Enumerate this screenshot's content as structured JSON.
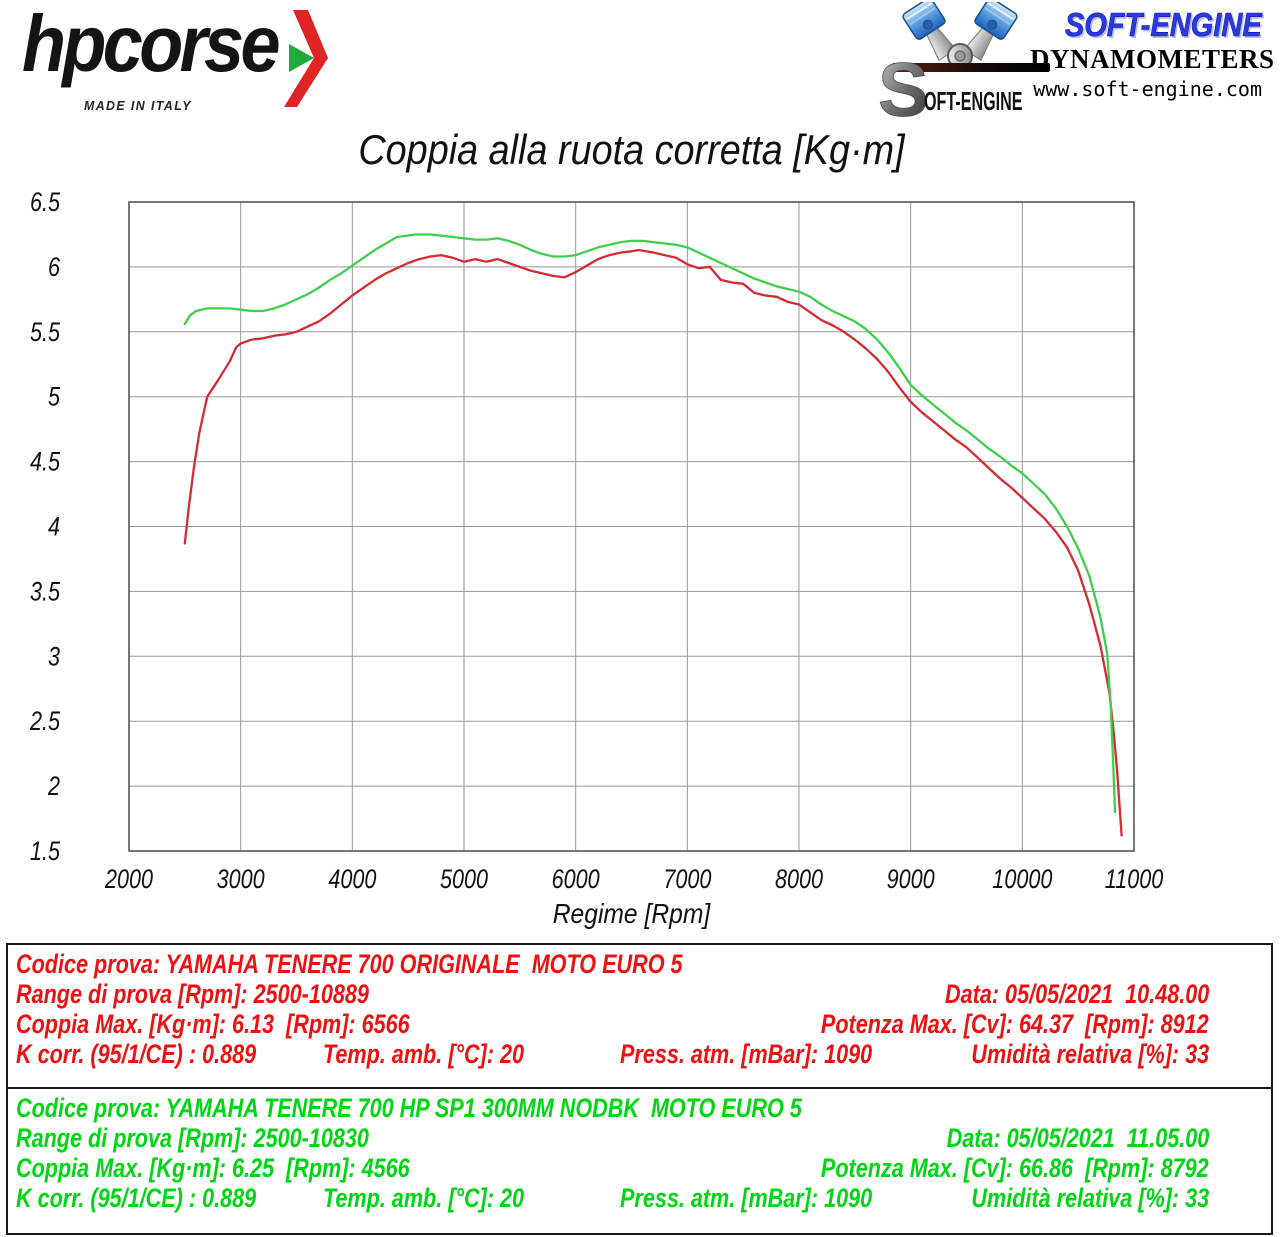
{
  "header": {
    "hpcorse": {
      "brand": "hpcorse",
      "tagline": "MADE IN ITALY"
    },
    "softengine": {
      "s_initial": "S",
      "s_text": "OFT-ENGINE",
      "brand": "SOFT-ENGINE",
      "subtitle": "DYNAMOMETERS",
      "url": "www.soft-engine.com",
      "brand_color": "#2b3bdd"
    }
  },
  "chart_data": {
    "type": "line",
    "title": "Coppia alla ruota corretta [Kg·m]",
    "xlabel": "Regime [Rpm]",
    "ylabel": "",
    "xlim": [
      2000,
      11000
    ],
    "ylim": [
      1.5,
      6.5
    ],
    "x_ticks": [
      "2000",
      "3000",
      "4000",
      "5000",
      "6000",
      "7000",
      "8000",
      "9000",
      "10000",
      "11000"
    ],
    "y_ticks": [
      "6.5",
      "6",
      "5.5",
      "5",
      "4.5",
      "4",
      "3.5",
      "3",
      "2.5",
      "2",
      "1.5"
    ],
    "grid": true,
    "legend_position": "none",
    "series": [
      {
        "name": "YAMAHA TENERE 700 ORIGINALE MOTO EURO 5",
        "color": "#d52b32",
        "max_torque_kgm": 6.13,
        "max_torque_rpm": 6566,
        "points": [
          [
            2500,
            3.87
          ],
          [
            2540,
            4.18
          ],
          [
            2580,
            4.45
          ],
          [
            2630,
            4.72
          ],
          [
            2700,
            5.0
          ],
          [
            2800,
            5.13
          ],
          [
            2900,
            5.27
          ],
          [
            2960,
            5.38
          ],
          [
            3000,
            5.41
          ],
          [
            3100,
            5.44
          ],
          [
            3200,
            5.45
          ],
          [
            3300,
            5.47
          ],
          [
            3400,
            5.48
          ],
          [
            3500,
            5.5
          ],
          [
            3600,
            5.54
          ],
          [
            3700,
            5.58
          ],
          [
            3800,
            5.64
          ],
          [
            3900,
            5.71
          ],
          [
            4000,
            5.78
          ],
          [
            4100,
            5.84
          ],
          [
            4200,
            5.9
          ],
          [
            4300,
            5.95
          ],
          [
            4400,
            5.99
          ],
          [
            4500,
            6.03
          ],
          [
            4600,
            6.06
          ],
          [
            4700,
            6.08
          ],
          [
            4800,
            6.09
          ],
          [
            4900,
            6.07
          ],
          [
            5000,
            6.04
          ],
          [
            5100,
            6.06
          ],
          [
            5200,
            6.04
          ],
          [
            5300,
            6.06
          ],
          [
            5400,
            6.03
          ],
          [
            5500,
            6.0
          ],
          [
            5600,
            5.97
          ],
          [
            5700,
            5.95
          ],
          [
            5800,
            5.93
          ],
          [
            5900,
            5.92
          ],
          [
            6000,
            5.96
          ],
          [
            6100,
            6.01
          ],
          [
            6200,
            6.06
          ],
          [
            6300,
            6.09
          ],
          [
            6400,
            6.11
          ],
          [
            6500,
            6.12
          ],
          [
            6566,
            6.13
          ],
          [
            6700,
            6.11
          ],
          [
            6800,
            6.09
          ],
          [
            6900,
            6.07
          ],
          [
            7000,
            6.02
          ],
          [
            7100,
            5.99
          ],
          [
            7200,
            6.0
          ],
          [
            7300,
            5.9
          ],
          [
            7400,
            5.88
          ],
          [
            7500,
            5.87
          ],
          [
            7600,
            5.8
          ],
          [
            7700,
            5.78
          ],
          [
            7800,
            5.77
          ],
          [
            7900,
            5.73
          ],
          [
            8000,
            5.71
          ],
          [
            8100,
            5.65
          ],
          [
            8200,
            5.59
          ],
          [
            8300,
            5.55
          ],
          [
            8400,
            5.5
          ],
          [
            8500,
            5.44
          ],
          [
            8600,
            5.37
          ],
          [
            8700,
            5.29
          ],
          [
            8800,
            5.19
          ],
          [
            8900,
            5.07
          ],
          [
            9000,
            4.96
          ],
          [
            9100,
            4.88
          ],
          [
            9200,
            4.81
          ],
          [
            9300,
            4.74
          ],
          [
            9400,
            4.67
          ],
          [
            9500,
            4.61
          ],
          [
            9600,
            4.53
          ],
          [
            9700,
            4.45
          ],
          [
            9800,
            4.37
          ],
          [
            9900,
            4.3
          ],
          [
            10000,
            4.22
          ],
          [
            10100,
            4.14
          ],
          [
            10200,
            4.06
          ],
          [
            10300,
            3.96
          ],
          [
            10400,
            3.84
          ],
          [
            10500,
            3.66
          ],
          [
            10600,
            3.4
          ],
          [
            10700,
            3.08
          ],
          [
            10780,
            2.72
          ],
          [
            10820,
            2.4
          ],
          [
            10850,
            2.1
          ],
          [
            10889,
            1.62
          ]
        ]
      },
      {
        "name": "YAMAHA TENERE 700 HP SP1 300MM NODBK MOTO EURO 5",
        "color": "#3fcf4c",
        "max_torque_kgm": 6.25,
        "max_torque_rpm": 4566,
        "points": [
          [
            2500,
            5.56
          ],
          [
            2550,
            5.63
          ],
          [
            2600,
            5.66
          ],
          [
            2700,
            5.68
          ],
          [
            2800,
            5.68
          ],
          [
            2900,
            5.68
          ],
          [
            3000,
            5.67
          ],
          [
            3100,
            5.66
          ],
          [
            3200,
            5.66
          ],
          [
            3300,
            5.68
          ],
          [
            3400,
            5.71
          ],
          [
            3500,
            5.75
          ],
          [
            3600,
            5.79
          ],
          [
            3700,
            5.84
          ],
          [
            3800,
            5.9
          ],
          [
            3900,
            5.95
          ],
          [
            4000,
            6.01
          ],
          [
            4100,
            6.07
          ],
          [
            4200,
            6.13
          ],
          [
            4300,
            6.18
          ],
          [
            4400,
            6.23
          ],
          [
            4566,
            6.25
          ],
          [
            4700,
            6.25
          ],
          [
            4800,
            6.24
          ],
          [
            4900,
            6.23
          ],
          [
            5000,
            6.22
          ],
          [
            5100,
            6.21
          ],
          [
            5200,
            6.21
          ],
          [
            5300,
            6.22
          ],
          [
            5400,
            6.2
          ],
          [
            5500,
            6.17
          ],
          [
            5600,
            6.13
          ],
          [
            5700,
            6.1
          ],
          [
            5800,
            6.08
          ],
          [
            5900,
            6.08
          ],
          [
            6000,
            6.09
          ],
          [
            6100,
            6.12
          ],
          [
            6200,
            6.15
          ],
          [
            6300,
            6.17
          ],
          [
            6400,
            6.19
          ],
          [
            6500,
            6.2
          ],
          [
            6600,
            6.2
          ],
          [
            6700,
            6.19
          ],
          [
            6800,
            6.18
          ],
          [
            6900,
            6.17
          ],
          [
            7000,
            6.15
          ],
          [
            7100,
            6.11
          ],
          [
            7200,
            6.07
          ],
          [
            7300,
            6.03
          ],
          [
            7400,
            5.99
          ],
          [
            7500,
            5.95
          ],
          [
            7600,
            5.91
          ],
          [
            7700,
            5.88
          ],
          [
            7800,
            5.85
          ],
          [
            7900,
            5.83
          ],
          [
            8000,
            5.81
          ],
          [
            8100,
            5.77
          ],
          [
            8200,
            5.71
          ],
          [
            8300,
            5.66
          ],
          [
            8400,
            5.62
          ],
          [
            8500,
            5.58
          ],
          [
            8600,
            5.52
          ],
          [
            8700,
            5.44
          ],
          [
            8800,
            5.34
          ],
          [
            8900,
            5.22
          ],
          [
            9000,
            5.09
          ],
          [
            9100,
            5.01
          ],
          [
            9200,
            4.94
          ],
          [
            9300,
            4.87
          ],
          [
            9400,
            4.8
          ],
          [
            9500,
            4.74
          ],
          [
            9600,
            4.67
          ],
          [
            9700,
            4.6
          ],
          [
            9800,
            4.54
          ],
          [
            9900,
            4.47
          ],
          [
            10000,
            4.41
          ],
          [
            10100,
            4.33
          ],
          [
            10200,
            4.25
          ],
          [
            10300,
            4.14
          ],
          [
            10400,
            4.0
          ],
          [
            10500,
            3.83
          ],
          [
            10600,
            3.62
          ],
          [
            10700,
            3.3
          ],
          [
            10760,
            3.02
          ],
          [
            10790,
            2.65
          ],
          [
            10810,
            2.25
          ],
          [
            10830,
            1.8
          ]
        ]
      }
    ]
  },
  "results": [
    {
      "color": "#ee1111",
      "codice": "Codice prova: YAMAHA TENERE 700 ORIGINALE  MOTO EURO 5",
      "range": "Range di prova [Rpm]: 2500-10889",
      "data": "Data: 05/05/2021  10.48.00",
      "coppia": "Coppia Max. [Kg·m]: 6.13  [Rpm]: 6566",
      "potenza": "Potenza Max. [Cv]: 64.37  [Rpm]: 8912",
      "kcorr": "K corr. (95/1/CE) : 0.889",
      "temp": "Temp. amb. [°C]: 20",
      "press": "Press. atm. [mBar]: 1090",
      "umidita": "Umidità relativa [%]: 33"
    },
    {
      "color": "#00d614",
      "codice": "Codice prova: YAMAHA TENERE 700 HP SP1 300MM NODBK  MOTO EURO 5",
      "range": "Range di prova [Rpm]: 2500-10830",
      "data": "Data: 05/05/2021  11.05.00",
      "coppia": "Coppia Max. [Kg·m]: 6.25  [Rpm]: 4566",
      "potenza": "Potenza Max. [Cv]: 66.86  [Rpm]: 8792",
      "kcorr": "K corr. (95/1/CE) : 0.889",
      "temp": "Temp. amb. [°C]: 20",
      "press": "Press. atm. [mBar]: 1090",
      "umidita": "Umidità relativa [%]: 33"
    }
  ]
}
